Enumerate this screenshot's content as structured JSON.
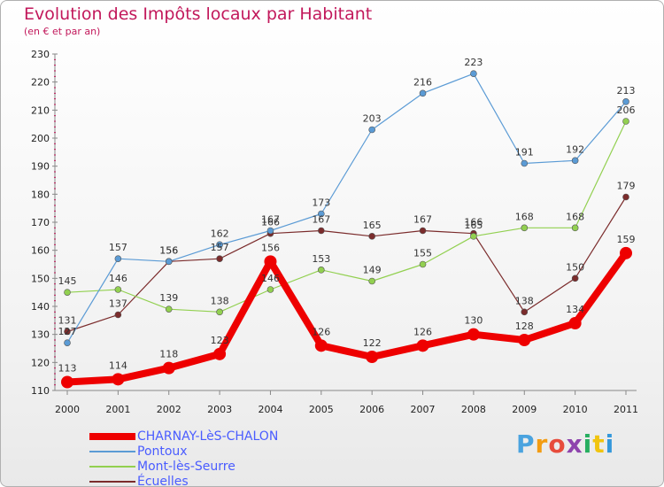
{
  "header": {
    "title": "Evolution des Impôts locaux par Habitant",
    "subtitle": "(en € et par an)"
  },
  "brand": {
    "text": "Proxiti",
    "colors": [
      "#4aa3df",
      "#f39c12",
      "#e74c3c",
      "#8e44ad",
      "#27ae60",
      "#f1c40f",
      "#3498db"
    ]
  },
  "chart_data": {
    "type": "line",
    "title": "Evolution des Impôts locaux par Habitant",
    "subtitle": "(en € et par an)",
    "x": [
      "2000",
      "2001",
      "2002",
      "2003",
      "2004",
      "2005",
      "2006",
      "2007",
      "2008",
      "2009",
      "2010",
      "2011"
    ],
    "ylim": [
      110,
      230
    ],
    "yticks": [
      110,
      120,
      130,
      140,
      150,
      160,
      170,
      180,
      190,
      200,
      210,
      220,
      230
    ],
    "grid": false,
    "legend_position": "bottom-left",
    "series": [
      {
        "name": "CHARNAY-LèS-CHALON",
        "color": "#ee0000",
        "values": [
          113,
          114,
          118,
          123,
          156,
          126,
          122,
          126,
          130,
          128,
          134,
          159
        ]
      },
      {
        "name": "Pontoux",
        "color": "#5b9bd5",
        "values": [
          127,
          157,
          156,
          162,
          167,
          173,
          203,
          216,
          223,
          191,
          192,
          213
        ]
      },
      {
        "name": "Mont-lès-Seurre",
        "color": "#92d050",
        "values": [
          145,
          146,
          139,
          138,
          146,
          153,
          149,
          155,
          165,
          168,
          168,
          206
        ]
      },
      {
        "name": "Écuelles",
        "color": "#7b2c2c",
        "values": [
          131,
          137,
          156,
          157,
          166,
          167,
          165,
          167,
          166,
          138,
          150,
          179
        ]
      }
    ]
  }
}
